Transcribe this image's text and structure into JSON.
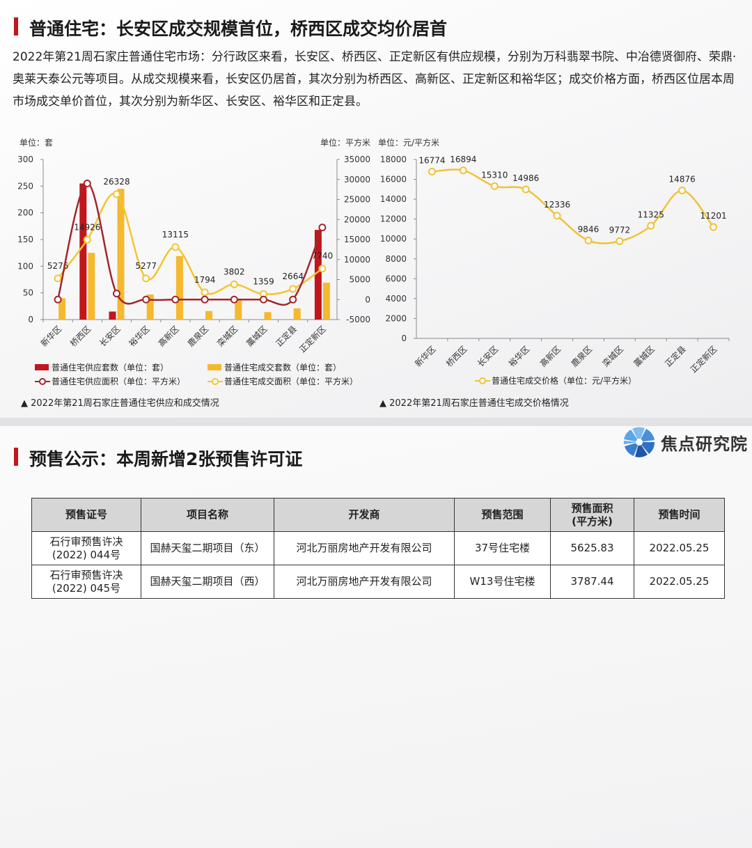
{
  "section1": {
    "title": "普通住宅：长安区成交规模首位，桥西区成交均价居首",
    "paragraph": "2022年第21周石家庄普通住宅市场：分行政区来看，长安区、桥西区、正定新区有供应规模，分别为万科翡翠书院、中冶德贤御府、荣鼎·奥莱天泰公元等项目。从成交规模来看，长安区仍居首，其次分别为桥西区、高新区、正定新区和裕华区；成交价格方面，桥西区位居本周市场成交单价首位，其次分别为新华区、长安区、裕华区和正定县。"
  },
  "section2": {
    "title": "预售公示：本周新增2张预售许可证",
    "logo_text": "焦点研究院"
  },
  "colors": {
    "accent_red": "#c0161c",
    "supply_bar": "#c0161c",
    "sales_bar": "#f4b92f",
    "sales_line": "#f4c430",
    "price_line": "#f0c235"
  },
  "chart_data": [
    {
      "type": "bar",
      "caption": "▲ 2022年第21周石家庄普通住宅供应和成交情况",
      "left_unit": "单位：套",
      "right_unit": "单位：平方米",
      "categories": [
        "新华区",
        "桥西区",
        "长安区",
        "裕华区",
        "高新区",
        "鹿泉区",
        "栾城区",
        "藁城区",
        "正定县",
        "正定新区"
      ],
      "ylim_left": [
        0,
        300
      ],
      "yticks_left": [
        0,
        50,
        100,
        150,
        200,
        250,
        300
      ],
      "ylim_right": [
        -5000,
        35000
      ],
      "yticks_right": [
        -5000,
        0,
        5000,
        10000,
        15000,
        20000,
        25000,
        30000,
        35000
      ],
      "series": [
        {
          "name": "普通住宅供应套数（单位：套）",
          "kind": "bar",
          "axis": "left",
          "values": [
            0,
            255,
            15,
            0,
            0,
            0,
            0,
            0,
            0,
            168
          ]
        },
        {
          "name": "普通住宅成交套数（单位：套）",
          "kind": "bar",
          "axis": "left",
          "values": [
            40,
            125,
            245,
            47,
            119,
            16,
            38,
            14,
            21,
            69
          ]
        },
        {
          "name": "普通住宅供应面积（单位：平方米）",
          "kind": "line",
          "axis": "right",
          "values": [
            0,
            29000,
            1500,
            0,
            0,
            0,
            0,
            0,
            0,
            18000
          ]
        },
        {
          "name": "普通住宅成交面积（单位：平方米）",
          "kind": "line",
          "axis": "right",
          "values": [
            5276,
            14926,
            26328,
            5277,
            13115,
            1794,
            3802,
            1359,
            2664,
            7740
          ],
          "labels": [
            "5276",
            "14926",
            "26328",
            "5277",
            "13115",
            "1794",
            "3802",
            "1359",
            "2664",
            "7740"
          ]
        }
      ],
      "legend": "bottom"
    },
    {
      "type": "line",
      "caption": "▲ 2022年第21周石家庄普通住宅成交价格情况",
      "unit": "单位：元/平方米",
      "categories": [
        "新华区",
        "桥西区",
        "长安区",
        "裕华区",
        "高新区",
        "鹿泉区",
        "栾城区",
        "藁城区",
        "正定县",
        "正定新区"
      ],
      "ylim": [
        0,
        18000
      ],
      "yticks": [
        0,
        2000,
        4000,
        6000,
        8000,
        10000,
        12000,
        14000,
        16000,
        18000
      ],
      "series": [
        {
          "name": "普通住宅成交价格（单位：元/平方米）",
          "values": [
            16774,
            16894,
            15310,
            14986,
            12336,
            9846,
            9772,
            11325,
            14876,
            11201
          ],
          "labels": [
            "16774",
            "16894",
            "15310",
            "14986",
            "12336",
            "9846",
            "9772",
            "11325",
            "14876",
            "11201"
          ]
        }
      ],
      "legend": "bottom"
    }
  ],
  "table": {
    "headers": [
      "预售证号",
      "项目名称",
      "开发商",
      "预售范围",
      "预售面积\n(平方米)",
      "预售时间"
    ],
    "rows": [
      [
        "石行审预售许决\n(2022) 044号",
        "国赫天玺二期项目（东）",
        "河北万丽房地产开发有限公司",
        "37号住宅楼",
        "5625.83",
        "2022.05.25"
      ],
      [
        "石行审预售许决\n(2022) 045号",
        "国赫天玺二期项目（西）",
        "河北万丽房地产开发有限公司",
        "W13号住宅楼",
        "3787.44",
        "2022.05.25"
      ]
    ]
  }
}
